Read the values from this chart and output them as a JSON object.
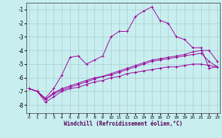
{
  "xlabel": "Windchill (Refroidissement éolien,°C)",
  "background_color": "#c8eef0",
  "grid_color": "#aacccc",
  "line_color": "#990099",
  "x_ticks": [
    0,
    1,
    2,
    3,
    4,
    5,
    6,
    7,
    8,
    9,
    10,
    11,
    12,
    13,
    14,
    15,
    16,
    17,
    18,
    19,
    20,
    21,
    22,
    23
  ],
  "y_ticks": [
    -8,
    -7,
    -6,
    -5,
    -4,
    -3,
    -2,
    -1
  ],
  "ylim": [
    -8.6,
    -0.5
  ],
  "xlim": [
    -0.3,
    23.3
  ],
  "lines": [
    {
      "x": [
        0,
        1,
        2,
        3,
        4,
        5,
        6,
        7,
        8,
        9,
        10,
        11,
        12,
        13,
        14,
        15,
        16,
        17,
        18,
        19,
        20,
        21,
        22,
        23
      ],
      "y": [
        -6.8,
        -7.0,
        -7.5,
        -6.8,
        -5.8,
        -4.5,
        -4.4,
        -5.0,
        -4.7,
        -4.4,
        -3.0,
        -2.6,
        -2.6,
        -1.5,
        -1.1,
        -0.8,
        -1.8,
        -2.0,
        -3.0,
        -3.2,
        -3.8,
        -3.8,
        -5.3,
        -5.2
      ]
    },
    {
      "x": [
        0,
        1,
        2,
        3,
        4,
        5,
        6,
        7,
        8,
        9,
        10,
        11,
        12,
        13,
        14,
        15,
        16,
        17,
        18,
        19,
        20,
        21,
        22,
        23
      ],
      "y": [
        -6.8,
        -7.0,
        -7.6,
        -7.1,
        -6.8,
        -6.6,
        -6.4,
        -6.2,
        -6.0,
        -5.9,
        -5.7,
        -5.5,
        -5.3,
        -5.1,
        -4.9,
        -4.7,
        -4.6,
        -4.5,
        -4.4,
        -4.3,
        -4.1,
        -4.0,
        -4.0,
        -4.8
      ]
    },
    {
      "x": [
        0,
        1,
        2,
        3,
        4,
        5,
        6,
        7,
        8,
        9,
        10,
        11,
        12,
        13,
        14,
        15,
        16,
        17,
        18,
        19,
        20,
        21,
        22,
        23
      ],
      "y": [
        -6.8,
        -7.0,
        -7.6,
        -7.2,
        -6.9,
        -6.7,
        -6.5,
        -6.3,
        -6.1,
        -5.9,
        -5.8,
        -5.6,
        -5.4,
        -5.2,
        -5.0,
        -4.8,
        -4.7,
        -4.6,
        -4.5,
        -4.4,
        -4.3,
        -4.2,
        -4.8,
        -5.2
      ]
    },
    {
      "x": [
        0,
        1,
        2,
        3,
        4,
        5,
        6,
        7,
        8,
        9,
        10,
        11,
        12,
        13,
        14,
        15,
        16,
        17,
        18,
        19,
        20,
        21,
        22,
        23
      ],
      "y": [
        -6.8,
        -7.0,
        -7.8,
        -7.4,
        -7.0,
        -6.8,
        -6.7,
        -6.5,
        -6.3,
        -6.2,
        -6.0,
        -5.9,
        -5.7,
        -5.6,
        -5.5,
        -5.4,
        -5.3,
        -5.2,
        -5.2,
        -5.1,
        -5.0,
        -5.0,
        -5.1,
        -5.2
      ]
    }
  ]
}
